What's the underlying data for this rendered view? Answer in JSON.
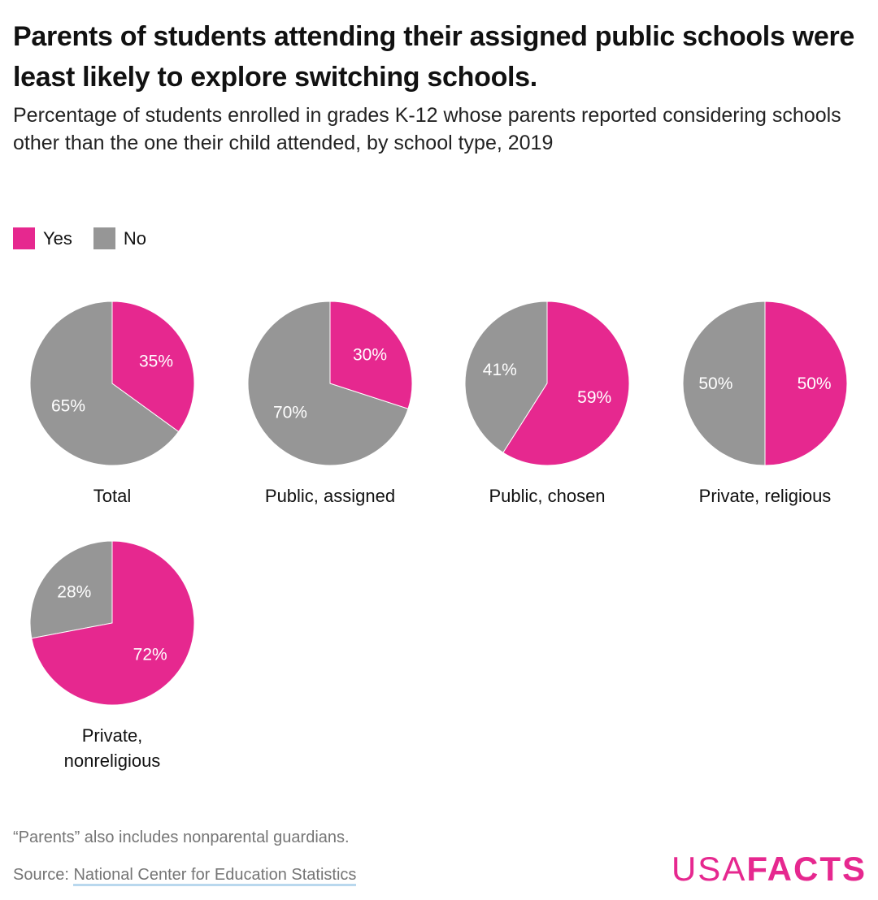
{
  "chart_data": {
    "type": "pie",
    "title": "Parents of students attending their assigned public schools were least likely to explore switching schools.",
    "subtitle": "Percentage of students enrolled in grades K-12 whose parents reported considering schools other than the one their child attended, by school type, 2019",
    "legend": [
      {
        "name": "Yes",
        "color": "#e6288f"
      },
      {
        "name": "No",
        "color": "#969696"
      }
    ],
    "pies": [
      {
        "category": "Total",
        "yes": 35,
        "no": 65
      },
      {
        "category": "Public, assigned",
        "yes": 30,
        "no": 70
      },
      {
        "category": "Public, chosen",
        "yes": 59,
        "no": 41
      },
      {
        "category": "Private, religious",
        "yes": 50,
        "no": 50
      },
      {
        "category": "Private, nonreligious",
        "yes": 72,
        "no": 28
      }
    ]
  },
  "footer": {
    "note": "“Parents” also includes nonparental guardians.",
    "source_prefix": "Source: ",
    "source_link": "National Center for Education Statistics"
  },
  "brand": {
    "usa": "USA",
    "facts": "FACTS",
    "color": "#e6288f"
  }
}
